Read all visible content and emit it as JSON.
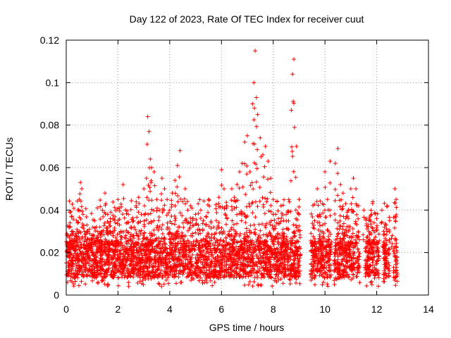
{
  "chart_data": {
    "type": "scatter",
    "title": "Day 122 of 2023, Rate Of TEC Index for receiver cuut",
    "xlabel": "GPS time / hours",
    "ylabel": "ROTI / TECUs",
    "xlim": [
      0,
      14
    ],
    "ylim": [
      0,
      0.12
    ],
    "xticks": [
      "0",
      "2",
      "4",
      "6",
      "8",
      "10",
      "12",
      "14"
    ],
    "yticks": [
      "0",
      "0.02",
      "0.04",
      "0.06",
      "0.08",
      "0.1",
      "0.12"
    ],
    "grid": true,
    "marker": "+",
    "color": "#ff0000",
    "series": [
      {
        "x": [
          0.05,
          0.1,
          0.15,
          0.2,
          0.25,
          0.3,
          0.35,
          0.4,
          0.45,
          0.5,
          0.55,
          0.6,
          0.65,
          0.7,
          0.75,
          0.8,
          0.85,
          0.9,
          0.95,
          1.0,
          1.1,
          1.2,
          1.3,
          1.4,
          1.5,
          1.6,
          1.7,
          1.8,
          1.9,
          2.0,
          2.1,
          2.2,
          2.3,
          2.4,
          2.5,
          2.6,
          2.7,
          2.8,
          2.9,
          3.0,
          3.1,
          3.15,
          3.2,
          3.25,
          3.3,
          3.4,
          3.5,
          3.6,
          3.7,
          3.8,
          3.9,
          4.0,
          4.1,
          4.2,
          4.3,
          4.4,
          4.5,
          4.6,
          4.7,
          4.8,
          4.9,
          5.0,
          5.1,
          5.2,
          5.3,
          5.4,
          5.5,
          5.6,
          5.7,
          5.8,
          5.9,
          6.0,
          6.1,
          6.2,
          6.3,
          6.4,
          6.5,
          6.6,
          6.7,
          6.8,
          6.9,
          7.0,
          7.1,
          7.2,
          7.25,
          7.3,
          7.35,
          7.4,
          7.5,
          7.6,
          7.7,
          7.8,
          7.9,
          8.0,
          8.1,
          8.2,
          8.3,
          8.4,
          8.5,
          8.6,
          8.7,
          8.75,
          8.8,
          8.9,
          9.0,
          9.5,
          9.6,
          9.7,
          9.8,
          9.9,
          10.0,
          10.1,
          10.2,
          10.4,
          10.5,
          10.6,
          10.7,
          10.8,
          10.9,
          11.0,
          11.1,
          11.2,
          11.3,
          11.5,
          11.6,
          11.7,
          11.8,
          11.9,
          12.0,
          12.2,
          12.3,
          12.4,
          12.5,
          12.6,
          12.7,
          12.75
        ],
        "y": [
          0.021,
          0.018,
          0.025,
          0.016,
          0.03,
          0.022,
          0.028,
          0.035,
          0.04,
          0.045,
          0.053,
          0.05,
          0.038,
          0.03,
          0.026,
          0.033,
          0.022,
          0.031,
          0.024,
          0.028,
          0.035,
          0.03,
          0.032,
          0.04,
          0.048,
          0.038,
          0.036,
          0.03,
          0.034,
          0.045,
          0.03,
          0.052,
          0.028,
          0.038,
          0.032,
          0.035,
          0.042,
          0.046,
          0.038,
          0.05,
          0.055,
          0.084,
          0.077,
          0.064,
          0.06,
          0.058,
          0.045,
          0.04,
          0.055,
          0.05,
          0.045,
          0.04,
          0.048,
          0.054,
          0.061,
          0.068,
          0.044,
          0.05,
          0.04,
          0.042,
          0.036,
          0.038,
          0.043,
          0.04,
          0.035,
          0.037,
          0.045,
          0.034,
          0.032,
          0.035,
          0.046,
          0.059,
          0.05,
          0.041,
          0.03,
          0.05,
          0.046,
          0.052,
          0.058,
          0.062,
          0.072,
          0.075,
          0.058,
          0.09,
          0.1,
          0.115,
          0.093,
          0.085,
          0.074,
          0.066,
          0.07,
          0.063,
          0.055,
          0.045,
          0.038,
          0.036,
          0.042,
          0.035,
          0.038,
          0.045,
          0.087,
          0.104,
          0.111,
          0.07,
          0.045,
          0.025,
          0.035,
          0.05,
          0.038,
          0.043,
          0.058,
          0.045,
          0.063,
          0.062,
          0.069,
          0.052,
          0.048,
          0.043,
          0.04,
          0.05,
          0.055,
          0.05,
          0.042,
          0.04,
          0.036,
          0.035,
          0.038,
          0.034,
          0.036,
          0.04,
          0.032,
          0.03,
          0.035,
          0.028,
          0.05,
          0.045
        ]
      }
    ],
    "dense_band": {
      "segments": [
        [
          0.0,
          9.05
        ],
        [
          9.45,
          10.25
        ],
        [
          10.35,
          11.35
        ],
        [
          11.55,
          12.1
        ],
        [
          12.25,
          12.5
        ],
        [
          12.65,
          12.8
        ]
      ],
      "baseline_range": [
        0.004,
        0.03
      ],
      "typical_range": [
        0.008,
        0.025
      ]
    }
  }
}
